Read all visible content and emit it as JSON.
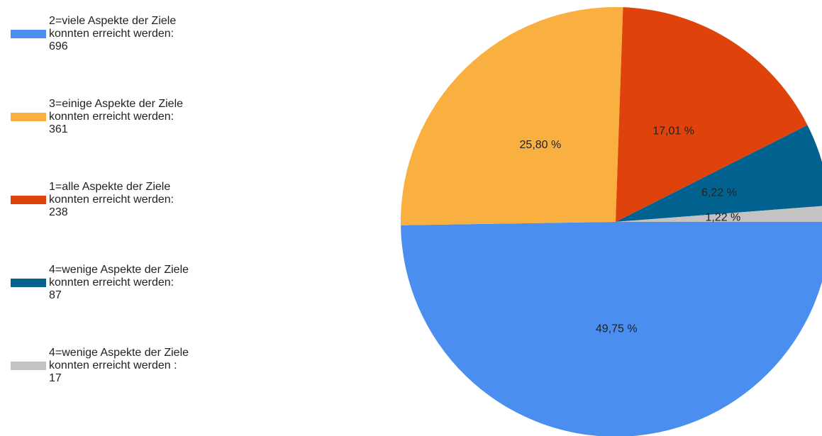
{
  "chart_data": {
    "type": "pie",
    "categories": [
      "2=viele Aspekte der Ziele konnten erreicht werden:",
      "3=einige Aspekte der Ziele konnten erreicht werden:",
      "1=alle Aspekte der Ziele konnten erreicht werden:",
      "4=wenige Aspekte der Ziele konnten erreicht werden:",
      "4=wenige Aspekte der Ziele konnten erreicht werden :"
    ],
    "counts": [
      696,
      361,
      238,
      87,
      17
    ],
    "values": [
      49.75,
      25.8,
      17.01,
      6.22,
      1.22
    ],
    "value_labels": [
      "49,75 %",
      "25,80 %",
      "17,01 %",
      "6,22 %",
      "1,22 %"
    ],
    "colors": [
      "#4a8ff0",
      "#f9b040",
      "#e0420c",
      "#01628f",
      "#c3c3c3"
    ],
    "legend": "left"
  }
}
